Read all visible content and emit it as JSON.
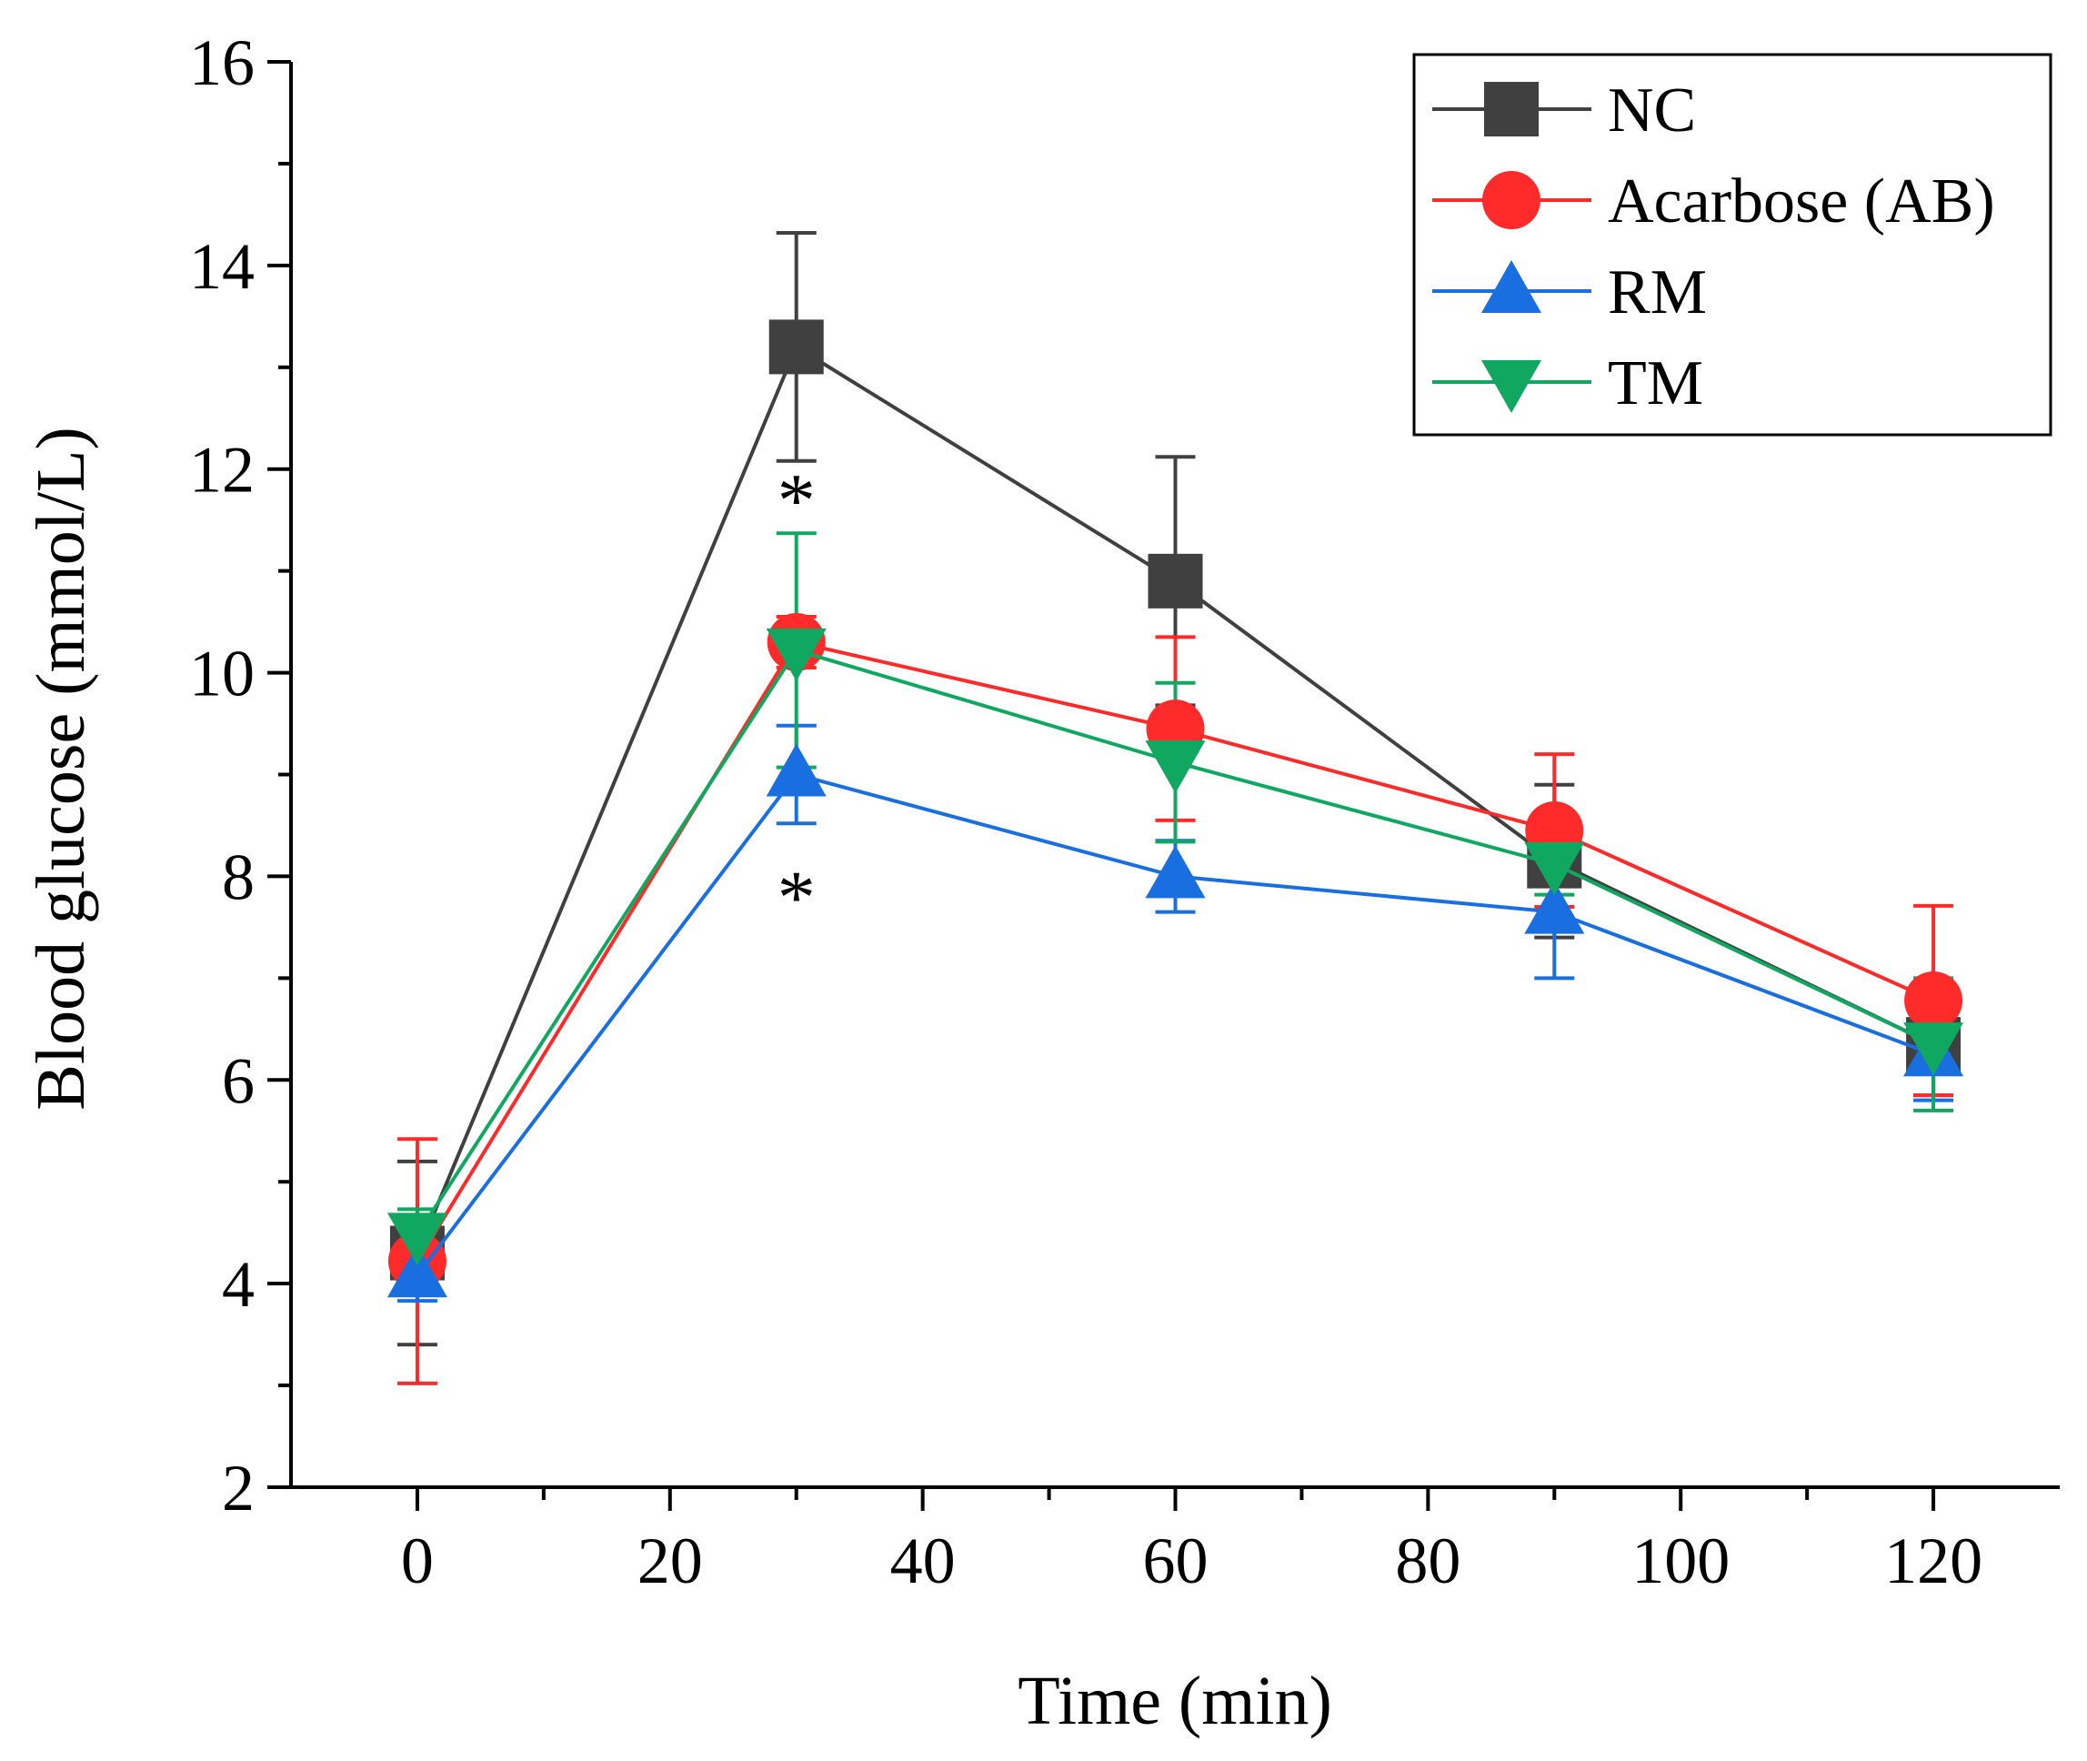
{
  "chart_data": {
    "type": "line",
    "x": [
      0,
      30,
      60,
      90,
      120
    ],
    "xlabel": "Time (min)",
    "ylabel": "Blood glucose (mmol/L)",
    "xlim": [
      -10,
      130
    ],
    "ylim": [
      2,
      16
    ],
    "x_ticks": [
      0,
      20,
      40,
      60,
      80,
      100,
      120
    ],
    "y_ticks": [
      2,
      4,
      6,
      8,
      10,
      12,
      14,
      16
    ],
    "grid": false,
    "legend_position": "top-right",
    "series": [
      {
        "name": "NC",
        "color": "#404040",
        "marker": "square",
        "values": [
          4.3,
          13.2,
          10.9,
          8.15,
          6.35
        ],
        "errors": [
          0.9,
          1.12,
          1.22,
          0.75,
          0.5
        ]
      },
      {
        "name": "Acarbose (AB)",
        "color": "#ff2b2b",
        "marker": "circle",
        "values": [
          4.22,
          10.3,
          9.45,
          8.45,
          6.78
        ],
        "errors": [
          1.2,
          0.25,
          0.9,
          0.75,
          0.93
        ]
      },
      {
        "name": "RM",
        "color": "#1a6fe0",
        "marker": "triangle-up",
        "values": [
          4.08,
          9.0,
          8.0,
          7.65,
          6.25
        ],
        "errors": [
          0.25,
          0.48,
          0.35,
          0.65,
          0.45
        ]
      },
      {
        "name": "TM",
        "color": "#10a860",
        "marker": "triangle-down",
        "values": [
          4.48,
          10.22,
          9.12,
          8.12,
          6.35
        ],
        "errors": [
          0.25,
          1.15,
          0.78,
          0.3,
          0.65
        ]
      }
    ],
    "annotations": [
      {
        "text": "*",
        "x": 30,
        "y": 11.8
      },
      {
        "text": "*",
        "x": 30,
        "y": 7.9
      }
    ]
  }
}
